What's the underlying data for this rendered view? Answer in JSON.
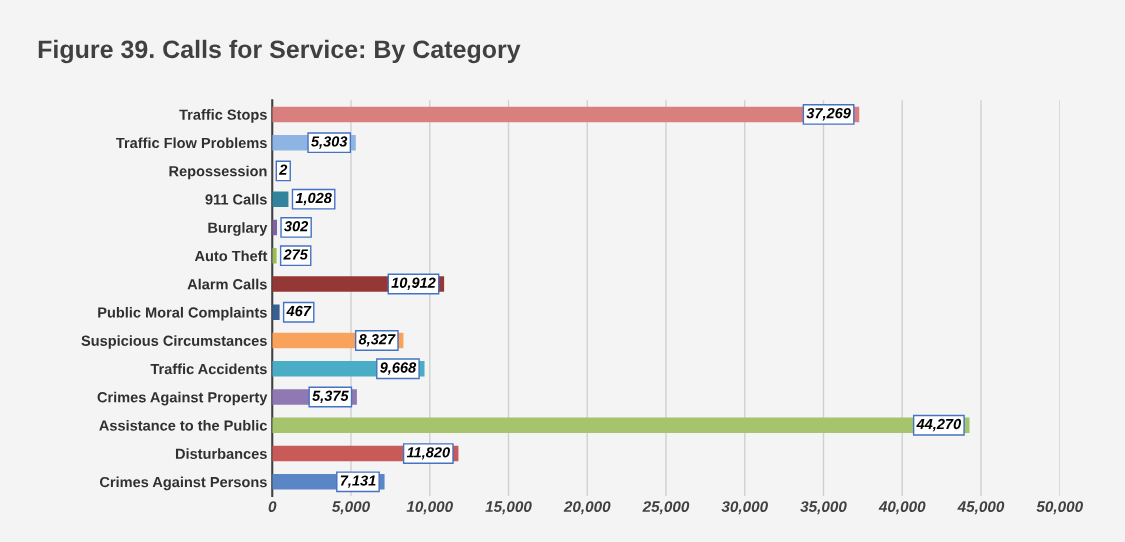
{
  "chart_data": {
    "type": "bar",
    "orientation": "horizontal",
    "title": "Figure 39. Calls for Service: By Category",
    "categories": [
      "Traffic Stops",
      "Traffic Flow Problems",
      "Repossession",
      "911 Calls",
      "Burglary",
      "Auto Theft",
      "Alarm Calls",
      "Public Moral Complaints",
      "Suspicious Circumstances",
      "Traffic Accidents",
      "Crimes Against Property",
      "Assistance to the Public",
      "Disturbances",
      "Crimes Against Persons"
    ],
    "values": [
      37269,
      5303,
      2,
      1028,
      302,
      275,
      10912,
      467,
      8327,
      9668,
      5375,
      44270,
      11820,
      7131
    ],
    "colors": [
      "#d9807e",
      "#8eb4e3",
      "#f79646",
      "#31849b",
      "#8064a2",
      "#9bbb59",
      "#953735",
      "#376092",
      "#f9a25c",
      "#4bacc6",
      "#9079b2",
      "#a5c46c",
      "#c85a58",
      "#5b86c5"
    ],
    "xlim": [
      0,
      50000
    ],
    "xticks": [
      {
        "value": 0,
        "label": "0"
      },
      {
        "value": 5000,
        "label": "5,000"
      },
      {
        "value": 10000,
        "label": "10,000"
      },
      {
        "value": 15000,
        "label": "15,000"
      },
      {
        "value": 20000,
        "label": "20,000"
      },
      {
        "value": 25000,
        "label": "25,000"
      },
      {
        "value": 30000,
        "label": "30,000"
      },
      {
        "value": 35000,
        "label": "35,000"
      },
      {
        "value": 40000,
        "label": "40,000"
      },
      {
        "value": 45000,
        "label": "45,000"
      },
      {
        "value": 50000,
        "label": "50,000"
      }
    ],
    "value_labels": [
      "37,269",
      "5,303",
      "2",
      "1,028",
      "302",
      "275",
      "10,912",
      "467",
      "8,327",
      "9,668",
      "5,375",
      "44,270",
      "11,820",
      "7,131"
    ],
    "grid": "x",
    "legend": false
  }
}
